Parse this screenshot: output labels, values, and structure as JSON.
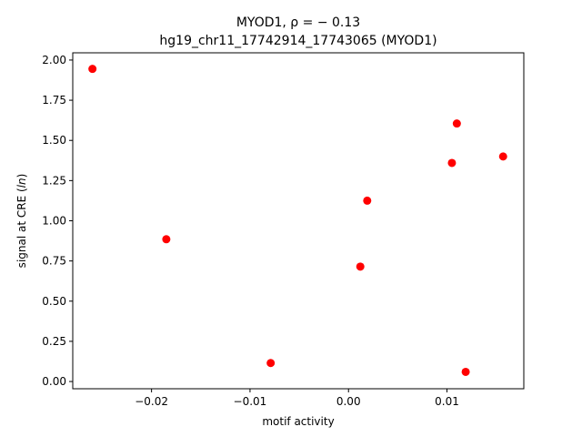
{
  "chart_data": {
    "type": "scatter",
    "title_line1": "MYOD1, ρ = − 0.13",
    "title_line2": "hg19_chr11_17742914_17743065 (MYOD1)",
    "xlabel": "motif activity",
    "ylabel_prefix": "signal at CRE (",
    "ylabel_italic": "ln",
    "ylabel_suffix": ")",
    "xlim": [
      -0.028,
      0.0178
    ],
    "ylim": [
      -0.045,
      2.045
    ],
    "x_ticks": [
      {
        "value": -0.02,
        "label": "−0.02"
      },
      {
        "value": -0.01,
        "label": "−0.01"
      },
      {
        "value": 0.0,
        "label": "0.00"
      },
      {
        "value": 0.01,
        "label": "0.01"
      }
    ],
    "y_ticks": [
      {
        "value": 0.0,
        "label": "0.00"
      },
      {
        "value": 0.25,
        "label": "0.25"
      },
      {
        "value": 0.5,
        "label": "0.50"
      },
      {
        "value": 0.75,
        "label": "0.75"
      },
      {
        "value": 1.0,
        "label": "1.00"
      },
      {
        "value": 1.25,
        "label": "1.25"
      },
      {
        "value": 1.5,
        "label": "1.50"
      },
      {
        "value": 1.75,
        "label": "1.75"
      },
      {
        "value": 2.0,
        "label": "2.00"
      }
    ],
    "grid": false,
    "point_color": "#ff0000",
    "points": [
      {
        "x": -0.026,
        "y": 1.945
      },
      {
        "x": -0.0185,
        "y": 0.885
      },
      {
        "x": -0.0079,
        "y": 0.115
      },
      {
        "x": 0.0012,
        "y": 0.715
      },
      {
        "x": 0.0019,
        "y": 1.125
      },
      {
        "x": 0.0105,
        "y": 1.36
      },
      {
        "x": 0.011,
        "y": 1.605
      },
      {
        "x": 0.0119,
        "y": 0.06
      },
      {
        "x": 0.0157,
        "y": 1.4
      }
    ]
  }
}
